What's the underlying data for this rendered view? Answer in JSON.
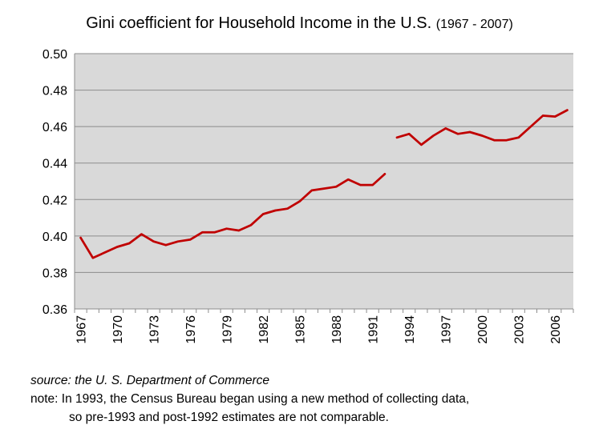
{
  "title": {
    "main": "Gini  coefficient  for Household  Income in the U.S.",
    "sub": "(1967 - 2007)"
  },
  "notes": {
    "source": "source:  the U. S. Department of Commerce",
    "note_line1": "note: In 1993, the Census Bureau began using a new method of collecting data,",
    "note_line2": "so pre-1993 and post-1992 estimates  are not comparable."
  },
  "chart_data": {
    "type": "line",
    "title": "Gini  coefficient  for Household  Income in the U.S. (1967 - 2007)",
    "xlabel": "",
    "ylabel": "",
    "xlim": [
      1967,
      2007
    ],
    "ylim": [
      0.36,
      0.5
    ],
    "y_ticks": [
      "0.36",
      "0.38",
      "0.40",
      "0.42",
      "0.44",
      "0.46",
      "0.48",
      "0.50"
    ],
    "x_tick_labels": [
      "1967",
      "1970",
      "1973",
      "1976",
      "1979",
      "1982",
      "1985",
      "1988",
      "1991",
      "1994",
      "1997",
      "2000",
      "2003",
      "2006"
    ],
    "grid": true,
    "legend": "none",
    "colors": {
      "line": "#c00000",
      "plot_bg": "#d9d9d9",
      "grid": "#8c8c8c"
    },
    "series": [
      {
        "segment": "pre-1993",
        "x": [
          1967,
          1968,
          1969,
          1970,
          1971,
          1972,
          1973,
          1974,
          1975,
          1976,
          1977,
          1978,
          1979,
          1980,
          1981,
          1982,
          1983,
          1984,
          1985,
          1986,
          1987,
          1988,
          1989,
          1990,
          1991,
          1992
        ],
        "y": [
          0.399,
          0.388,
          0.391,
          0.394,
          0.396,
          0.401,
          0.397,
          0.395,
          0.397,
          0.398,
          0.402,
          0.402,
          0.404,
          0.403,
          0.406,
          0.412,
          0.414,
          0.415,
          0.419,
          0.425,
          0.426,
          0.427,
          0.431,
          0.428,
          0.428,
          0.434
        ]
      },
      {
        "segment": "post-1992",
        "x": [
          1993,
          1994,
          1995,
          1996,
          1997,
          1998,
          1999,
          2000,
          2001,
          2002,
          2003,
          2004,
          2005,
          2006,
          2007
        ],
        "y": [
          0.454,
          0.456,
          0.45,
          0.455,
          0.459,
          0.456,
          0.457,
          0.455,
          0.4525,
          0.4525,
          0.454,
          0.46,
          0.466,
          0.4655,
          0.469
        ]
      }
    ]
  }
}
